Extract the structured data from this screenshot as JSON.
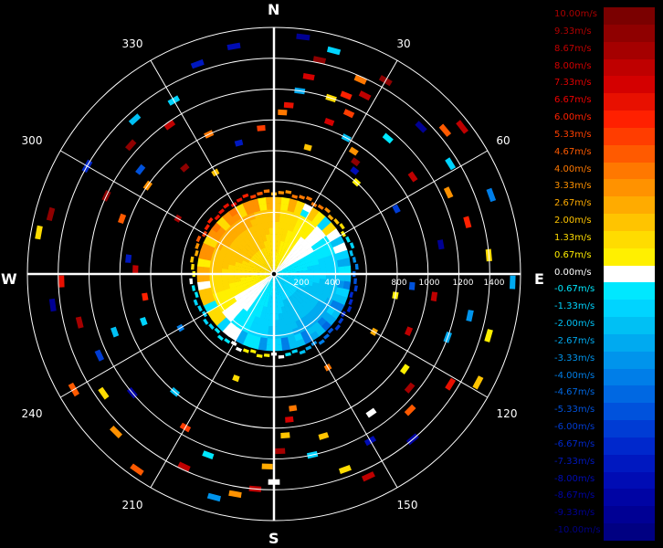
{
  "chart_data": {
    "type": "heatmap",
    "subtype": "polar-radial-velocity (PPI)",
    "compass": {
      "north": "N",
      "east": "E",
      "south": "S",
      "west": "W"
    },
    "azimuth_labels": [
      "30",
      "60",
      "120",
      "150",
      "210",
      "240",
      "300",
      "330"
    ],
    "range_labels": [
      "200",
      "400",
      "800",
      "1000",
      "1200",
      "1400"
    ],
    "range_max": 1600,
    "colorbar": {
      "levels": [
        {
          "label": "10.00m/s",
          "color": "#7a0000",
          "label_color": "#aa0000"
        },
        {
          "label": "9.33m/s",
          "color": "#8f0000",
          "label_color": "#b00000"
        },
        {
          "label": "8.67m/s",
          "color": "#a50000",
          "label_color": "#c00000"
        },
        {
          "label": "8.00m/s",
          "color": "#bf0000",
          "label_color": "#d00000"
        },
        {
          "label": "7.33m/s",
          "color": "#d40000",
          "label_color": "#e00000"
        },
        {
          "label": "6.67m/s",
          "color": "#e81000",
          "label_color": "#f00000"
        },
        {
          "label": "6.00m/s",
          "color": "#ff2000",
          "label_color": "#ff2000"
        },
        {
          "label": "5.33m/s",
          "color": "#ff3d00",
          "label_color": "#ff4000"
        },
        {
          "label": "4.67m/s",
          "color": "#ff5a00",
          "label_color": "#ff5a00"
        },
        {
          "label": "4.00m/s",
          "color": "#ff7800",
          "label_color": "#ff7800"
        },
        {
          "label": "3.33m/s",
          "color": "#ff9200",
          "label_color": "#ff9200"
        },
        {
          "label": "2.67m/s",
          "color": "#ffab00",
          "label_color": "#ffab00"
        },
        {
          "label": "2.00m/s",
          "color": "#ffc400",
          "label_color": "#ffc400"
        },
        {
          "label": "1.33m/s",
          "color": "#ffdc00",
          "label_color": "#ffdc00"
        },
        {
          "label": "0.67m/s",
          "color": "#fff000",
          "label_color": "#ffee00"
        },
        {
          "label": "0.00m/s",
          "color": "#ffffff",
          "label_color": "#ffffff"
        },
        {
          "label": "-0.67m/s",
          "color": "#00e8ff",
          "label_color": "#00e8ff"
        },
        {
          "label": "-1.33m/s",
          "color": "#00d4ff",
          "label_color": "#00d4ff"
        },
        {
          "label": "-2.00m/s",
          "color": "#00c0f4",
          "label_color": "#00c0f4"
        },
        {
          "label": "-2.67m/s",
          "color": "#00aaf0",
          "label_color": "#00aaf0"
        },
        {
          "label": "-3.33m/s",
          "color": "#0094ec",
          "label_color": "#0094ec"
        },
        {
          "label": "-4.00m/s",
          "color": "#007ee8",
          "label_color": "#007ee8"
        },
        {
          "label": "-4.67m/s",
          "color": "#0068e2",
          "label_color": "#0068e2"
        },
        {
          "label": "-5.33m/s",
          "color": "#0052dc",
          "label_color": "#0052dc"
        },
        {
          "label": "-6.00m/s",
          "color": "#003cd4",
          "label_color": "#003cd4"
        },
        {
          "label": "-6.67m/s",
          "color": "#0028cc",
          "label_color": "#0028cc"
        },
        {
          "label": "-7.33m/s",
          "color": "#0018c0",
          "label_color": "#0018c0"
        },
        {
          "label": "-8.00m/s",
          "color": "#000cb4",
          "label_color": "#000cb4"
        },
        {
          "label": "-8.67m/s",
          "color": "#0004a4",
          "label_color": "#0004a4"
        },
        {
          "label": "-9.33m/s",
          "color": "#000094",
          "label_color": "#000094"
        },
        {
          "label": "-10.00m/s",
          "color": "#000082",
          "label_color": "#000082"
        }
      ]
    },
    "bins": [
      {
        "az": 30,
        "r": 1450,
        "v": 9.3
      },
      {
        "az": 24,
        "r": 1380,
        "v": 4.0
      },
      {
        "az": 27,
        "r": 1300,
        "v": 8.0
      },
      {
        "az": 22,
        "r": 1250,
        "v": 6.0
      },
      {
        "az": 18,
        "r": 1200,
        "v": 1.3
      },
      {
        "az": 25,
        "r": 1150,
        "v": 5.3
      },
      {
        "az": 20,
        "r": 1050,
        "v": 7.3
      },
      {
        "az": 28,
        "r": 1000,
        "v": -2.0
      },
      {
        "az": 33,
        "r": 950,
        "v": 3.3
      },
      {
        "az": 36,
        "r": 900,
        "v": 9.3
      },
      {
        "az": 38,
        "r": 850,
        "v": -8.0
      },
      {
        "az": 42,
        "r": 800,
        "v": 0.7
      },
      {
        "az": 45,
        "r": 1350,
        "v": -9.3
      },
      {
        "az": 50,
        "r": 1450,
        "v": 4.7
      },
      {
        "az": 55,
        "r": 1100,
        "v": 8.0
      },
      {
        "az": 62,
        "r": 900,
        "v": -6.0
      },
      {
        "az": 15,
        "r": 1500,
        "v": -1.3
      },
      {
        "az": 12,
        "r": 1420,
        "v": 9.3
      },
      {
        "az": 10,
        "r": 1300,
        "v": 7.3
      },
      {
        "az": 8,
        "r": 1200,
        "v": -2.7
      },
      {
        "az": 5,
        "r": 1100,
        "v": 6.7
      },
      {
        "az": 3,
        "r": 1050,
        "v": 4.0
      },
      {
        "az": 7,
        "r": 1550,
        "v": -9.3
      },
      {
        "az": 350,
        "r": 1500,
        "v": -8.0
      },
      {
        "az": 340,
        "r": 1450,
        "v": -7.3
      },
      {
        "az": 330,
        "r": 1300,
        "v": -1.3
      },
      {
        "az": 325,
        "r": 1180,
        "v": 8.0
      },
      {
        "az": 318,
        "r": 1350,
        "v": -2.0
      },
      {
        "az": 312,
        "r": 1250,
        "v": 9.3
      },
      {
        "az": 308,
        "r": 1100,
        "v": -5.3
      },
      {
        "az": 305,
        "r": 1000,
        "v": 3.3
      },
      {
        "az": 300,
        "r": 1400,
        "v": -6.7
      },
      {
        "az": 295,
        "r": 1200,
        "v": 9.3
      },
      {
        "az": 290,
        "r": 1050,
        "v": 4.7
      },
      {
        "az": 285,
        "r": 1500,
        "v": 9.3
      },
      {
        "az": 280,
        "r": 1550,
        "v": 1.3
      },
      {
        "az": 276,
        "r": 950,
        "v": -7.3
      },
      {
        "az": 272,
        "r": 900,
        "v": 8.0
      },
      {
        "az": 268,
        "r": 1380,
        "v": 6.7
      },
      {
        "az": 262,
        "r": 1450,
        "v": -9.3
      },
      {
        "az": 256,
        "r": 1300,
        "v": 8.7
      },
      {
        "az": 250,
        "r": 1100,
        "v": -2.0
      },
      {
        "az": 245,
        "r": 1250,
        "v": -6.0
      },
      {
        "az": 240,
        "r": 1500,
        "v": 4.7
      },
      {
        "az": 235,
        "r": 1350,
        "v": 1.3
      },
      {
        "az": 230,
        "r": 1200,
        "v": -8.7
      },
      {
        "az": 225,
        "r": 1450,
        "v": 3.3
      },
      {
        "az": 215,
        "r": 1550,
        "v": 4.7
      },
      {
        "az": 205,
        "r": 1380,
        "v": 8.0
      },
      {
        "az": 195,
        "r": 1500,
        "v": -3.3
      },
      {
        "az": 190,
        "r": 1450,
        "v": 3.3
      },
      {
        "az": 185,
        "r": 1400,
        "v": 8.0
      },
      {
        "az": 182,
        "r": 1250,
        "v": 2.7
      },
      {
        "az": 180,
        "r": 1350,
        "v": 0.0
      },
      {
        "az": 178,
        "r": 1150,
        "v": 8.7
      },
      {
        "az": 176,
        "r": 1050,
        "v": 2.0
      },
      {
        "az": 174,
        "r": 950,
        "v": 7.3
      },
      {
        "az": 172,
        "r": 880,
        "v": 4.0
      },
      {
        "az": 168,
        "r": 1200,
        "v": -1.3
      },
      {
        "az": 163,
        "r": 1100,
        "v": 2.0
      },
      {
        "az": 160,
        "r": 1350,
        "v": 1.3
      },
      {
        "az": 155,
        "r": 1450,
        "v": 8.0
      },
      {
        "az": 150,
        "r": 1250,
        "v": -8.0
      },
      {
        "az": 145,
        "r": 1100,
        "v": 0.0
      },
      {
        "az": 140,
        "r": 1400,
        "v": -8.7
      },
      {
        "az": 135,
        "r": 1250,
        "v": 4.7
      },
      {
        "az": 130,
        "r": 1150,
        "v": 8.7
      },
      {
        "az": 126,
        "r": 1050,
        "v": 0.7
      },
      {
        "az": 122,
        "r": 1350,
        "v": 6.7
      },
      {
        "az": 118,
        "r": 1500,
        "v": 2.0
      },
      {
        "az": 113,
        "r": 950,
        "v": 8.0
      },
      {
        "az": 110,
        "r": 1200,
        "v": -2.7
      },
      {
        "az": 106,
        "r": 1450,
        "v": 0.7
      },
      {
        "az": 102,
        "r": 1300,
        "v": -3.3
      },
      {
        "az": 98,
        "r": 1050,
        "v": 8.0
      },
      {
        "az": 95,
        "r": 900,
        "v": -5.3
      },
      {
        "az": 92,
        "r": 1550,
        "v": -2.7
      },
      {
        "az": 85,
        "r": 1400,
        "v": 1.3
      },
      {
        "az": 80,
        "r": 1100,
        "v": -9.3
      },
      {
        "az": 75,
        "r": 1300,
        "v": 6.0
      },
      {
        "az": 70,
        "r": 1500,
        "v": -4.0
      },
      {
        "az": 65,
        "r": 1250,
        "v": 3.3
      },
      {
        "az": 58,
        "r": 1350,
        "v": -1.3
      },
      {
        "az": 52,
        "r": 1550,
        "v": 8.0
      },
      {
        "az": 200,
        "r": 1250,
        "v": -0.7
      },
      {
        "az": 210,
        "r": 1150,
        "v": 5.3
      },
      {
        "az": 220,
        "r": 1000,
        "v": -2.0
      },
      {
        "az": 250,
        "r": 900,
        "v": -1.3
      },
      {
        "az": 260,
        "r": 850,
        "v": 6.0
      },
      {
        "az": 320,
        "r": 900,
        "v": 9.3
      },
      {
        "az": 335,
        "r": 1000,
        "v": 4.0
      },
      {
        "az": 345,
        "r": 880,
        "v": -7.3
      },
      {
        "az": 355,
        "r": 950,
        "v": 5.3
      },
      {
        "az": 15,
        "r": 850,
        "v": 2.0
      },
      {
        "az": 40,
        "r": 1150,
        "v": -0.7
      },
      {
        "az": 100,
        "r": 800,
        "v": 0.7
      },
      {
        "az": 120,
        "r": 750,
        "v": 2.7
      },
      {
        "az": 150,
        "r": 700,
        "v": 4.0
      },
      {
        "az": 200,
        "r": 720,
        "v": 1.3
      },
      {
        "az": 240,
        "r": 700,
        "v": -4.0
      },
      {
        "az": 300,
        "r": 720,
        "v": 8.7
      },
      {
        "az": 330,
        "r": 760,
        "v": 2.0
      }
    ]
  }
}
